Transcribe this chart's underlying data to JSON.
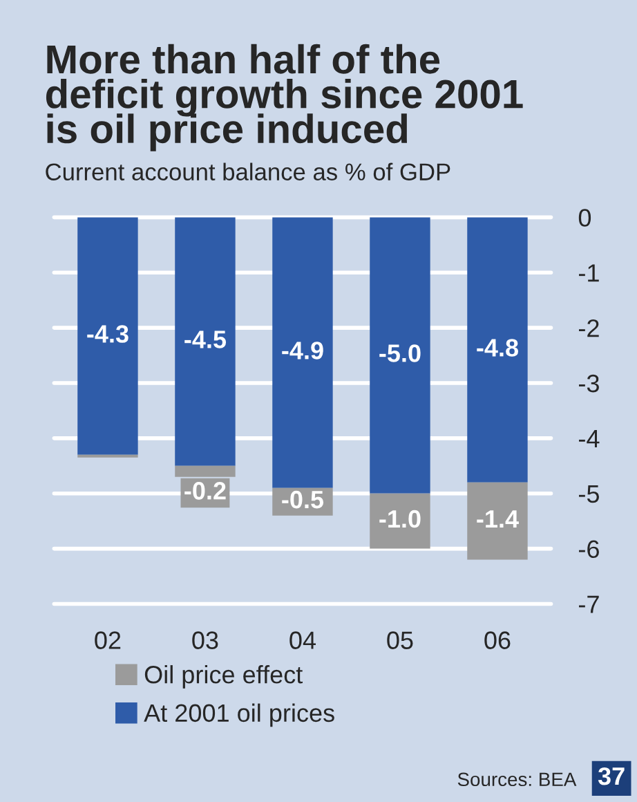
{
  "chart_data": {
    "type": "bar",
    "stacked": true,
    "title": "More than half of the\ndeficit growth since 2001\nis oil price induced",
    "subtitle": "Current account balance as % of GDP",
    "categories": [
      "02",
      "03",
      "04",
      "05",
      "06"
    ],
    "series": [
      {
        "name": "At 2001 oil prices",
        "color": "#2f5ca9",
        "values": [
          -4.3,
          -4.5,
          -4.9,
          -5.0,
          -4.8
        ],
        "value_labels": [
          "-4.3",
          "-4.5",
          "-4.9",
          "-5.0",
          "-4.8"
        ]
      },
      {
        "name": "Oil price effect",
        "color": "#9b9b9b",
        "values": [
          -0.05,
          -0.2,
          -0.5,
          -1.0,
          -1.4
        ],
        "value_labels": [
          null,
          "-0.2",
          "-0.5",
          "-1.0",
          "-1.4"
        ]
      }
    ],
    "ylim": [
      -7,
      0
    ],
    "yticks": [
      0,
      -1,
      -2,
      -3,
      -4,
      -5,
      -6,
      -7
    ],
    "grid": "y",
    "legend": "bottom",
    "annotations": [
      "Sources: BEA",
      "37"
    ]
  }
}
